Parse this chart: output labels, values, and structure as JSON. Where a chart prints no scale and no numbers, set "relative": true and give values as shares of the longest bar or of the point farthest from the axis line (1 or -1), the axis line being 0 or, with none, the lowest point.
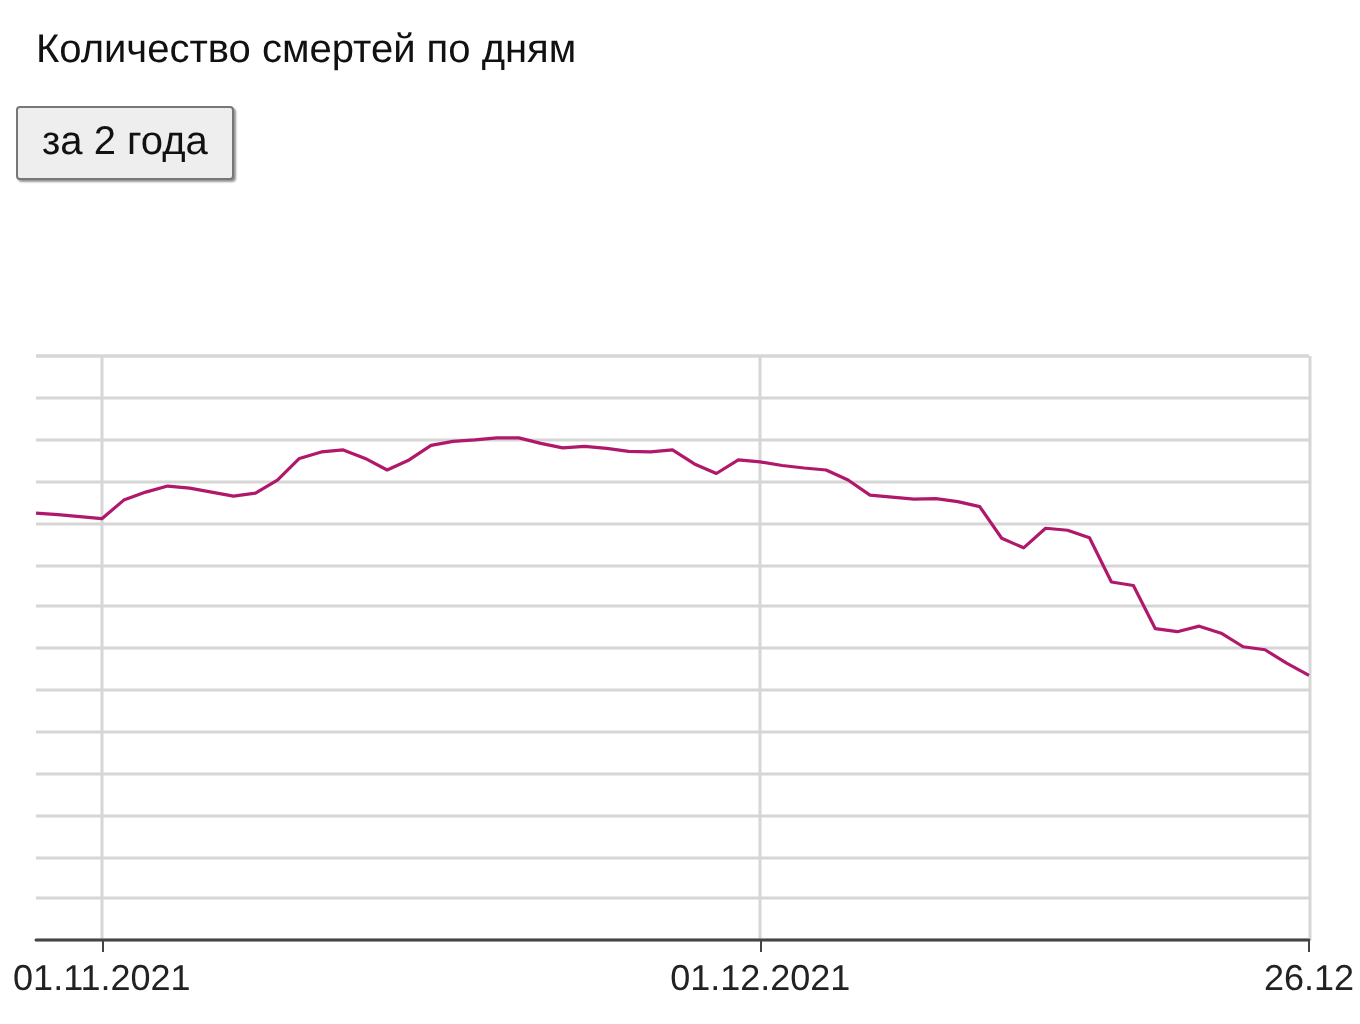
{
  "chart_data": {
    "type": "line",
    "title": "Количество смертей по дням",
    "annotations": [
      "за 2 года"
    ],
    "relative": true,
    "grid": true,
    "xlim": [
      "2021-10-29",
      "2021-12-26"
    ],
    "xticks": [
      {
        "value": "2021-11-01",
        "label": "01.11.2021"
      },
      {
        "value": "2021-12-01",
        "label": "01.12.2021"
      },
      {
        "value": "2021-12-26",
        "label": "26.12"
      }
    ],
    "x": [
      "2021-10-29",
      "2021-10-30",
      "2021-10-31",
      "2021-11-01",
      "2021-11-02",
      "2021-11-03",
      "2021-11-04",
      "2021-11-05",
      "2021-11-06",
      "2021-11-07",
      "2021-11-08",
      "2021-11-09",
      "2021-11-10",
      "2021-11-11",
      "2021-11-12",
      "2021-11-13",
      "2021-11-14",
      "2021-11-15",
      "2021-11-16",
      "2021-11-17",
      "2021-11-18",
      "2021-11-19",
      "2021-11-20",
      "2021-11-21",
      "2021-11-22",
      "2021-11-23",
      "2021-11-24",
      "2021-11-25",
      "2021-11-26",
      "2021-11-27",
      "2021-11-28",
      "2021-11-29",
      "2021-11-30",
      "2021-12-01",
      "2021-12-02",
      "2021-12-03",
      "2021-12-04",
      "2021-12-05",
      "2021-12-06",
      "2021-12-07",
      "2021-12-08",
      "2021-12-09",
      "2021-12-10",
      "2021-12-11",
      "2021-12-12",
      "2021-12-13",
      "2021-12-14",
      "2021-12-15",
      "2021-12-16",
      "2021-12-17",
      "2021-12-18",
      "2021-12-19",
      "2021-12-20",
      "2021-12-21",
      "2021-12-22",
      "2021-12-23",
      "2021-12-24",
      "2021-12-25",
      "2021-12-26"
    ],
    "series": [
      {
        "color": "#b0186b",
        "values": [
          0.85,
          0.847,
          0.843,
          0.839,
          0.876,
          0.892,
          0.904,
          0.9,
          0.892,
          0.884,
          0.89,
          0.916,
          0.959,
          0.972,
          0.976,
          0.959,
          0.936,
          0.956,
          0.985,
          0.993,
          0.996,
          1,
          1,
          0.989,
          0.98,
          0.983,
          0.979,
          0.973,
          0.972,
          0.976,
          0.948,
          0.929,
          0.956,
          0.952,
          0.945,
          0.94,
          0.936,
          0.916,
          0.886,
          0.882,
          0.878,
          0.879,
          0.873,
          0.863,
          0.8,
          0.781,
          0.82,
          0.816,
          0.801,
          0.713,
          0.706,
          0.62,
          0.614,
          0.625,
          0.611,
          0.584,
          0.578,
          0.551,
          0.527
        ]
      }
    ]
  }
}
